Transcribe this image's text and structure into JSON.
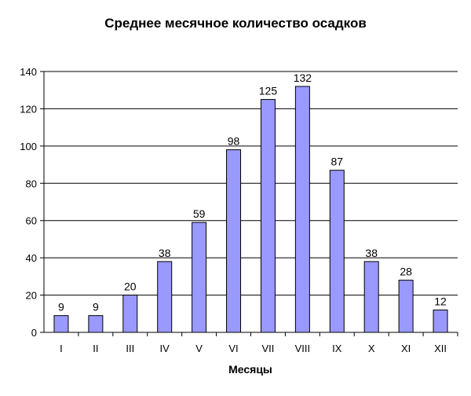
{
  "chart_data": {
    "type": "bar",
    "title": "Среднее месячное количество осадков",
    "xlabel": "Месяцы",
    "ylabel": "",
    "categories": [
      "I",
      "II",
      "III",
      "IV",
      "V",
      "VI",
      "VII",
      "VIII",
      "IX",
      "X",
      "XI",
      "XII"
    ],
    "values": [
      9,
      9,
      20,
      38,
      59,
      98,
      125,
      132,
      87,
      38,
      28,
      12
    ],
    "ylim": [
      0,
      140
    ],
    "yticks": [
      0,
      20,
      40,
      60,
      80,
      100,
      120,
      140
    ],
    "grid": true,
    "legend": "none",
    "colors": {
      "bar_fill": "#9999ff",
      "bar_stroke": "#000000",
      "grid": "#000000"
    }
  }
}
